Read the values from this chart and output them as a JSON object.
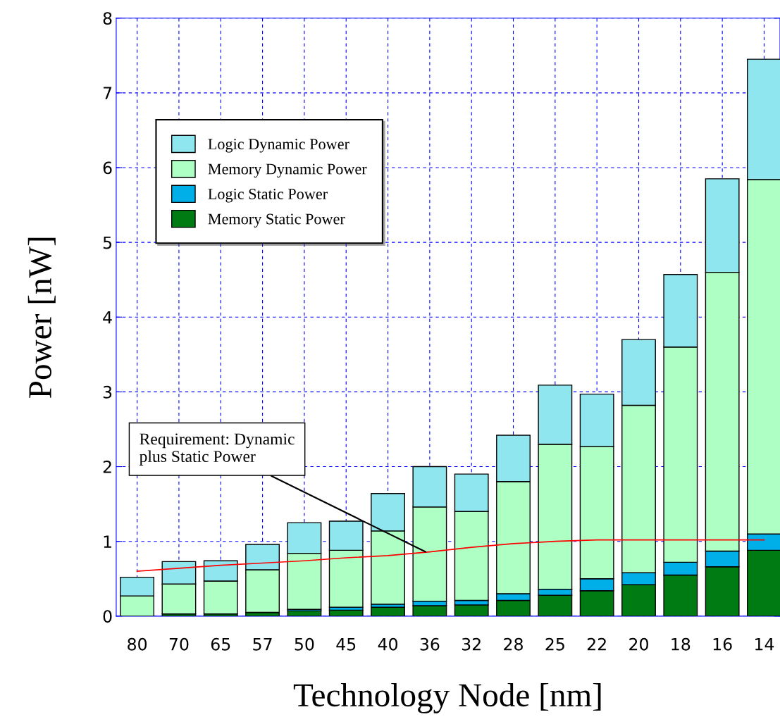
{
  "chart_data": {
    "type": "bar",
    "stacked": true,
    "xlabel": "Technology Node [nm]",
    "ylabel": "Power [nW]",
    "categories": [
      "80",
      "70",
      "65",
      "57",
      "50",
      "45",
      "40",
      "36",
      "32",
      "28",
      "25",
      "22",
      "20",
      "18",
      "16",
      "14"
    ],
    "series": [
      {
        "name": "Memory Static Power",
        "color": "#007a12",
        "values": [
          null,
          0.03,
          0.03,
          0.05,
          0.07,
          0.08,
          0.12,
          0.14,
          0.15,
          0.21,
          0.28,
          0.34,
          0.42,
          0.55,
          0.66,
          0.88
        ]
      },
      {
        "name": "Logic Static Power",
        "color": "#00aee8",
        "values": [
          null,
          null,
          null,
          null,
          0.02,
          0.04,
          0.04,
          0.06,
          0.06,
          0.09,
          0.08,
          0.16,
          0.16,
          0.17,
          0.21,
          0.22
        ]
      },
      {
        "name": "Memory Dynamic Power",
        "color": "#adffc4",
        "values": [
          0.27,
          0.4,
          0.44,
          0.57,
          0.75,
          0.76,
          0.98,
          1.26,
          1.19,
          1.5,
          1.94,
          1.77,
          2.24,
          2.88,
          3.73,
          4.74
        ]
      },
      {
        "name": "Logic Dynamic Power",
        "color": "#8fe6ef",
        "values": [
          0.25,
          0.3,
          0.27,
          0.34,
          0.41,
          0.39,
          0.5,
          0.54,
          0.5,
          0.62,
          0.79,
          0.7,
          0.88,
          0.97,
          1.25,
          1.61
        ]
      },
      {
        "type": "line",
        "color": "#ff0000",
        "values": [
          0.6,
          0.64,
          0.68,
          0.71,
          0.74,
          0.78,
          0.81,
          0.86,
          0.92,
          0.97,
          1.0,
          1.02,
          1.02,
          1.02,
          1.02,
          1.02
        ]
      }
    ],
    "ylim": [
      0,
      8
    ],
    "yticks": [
      0,
      1,
      2,
      3,
      4,
      5,
      6,
      7,
      8
    ],
    "grid": true,
    "legend": "top left",
    "annotations": [
      {
        "text": "Requirement: Dynamic\nplus Static Power",
        "x": "36",
        "y": 0.86
      }
    ]
  }
}
